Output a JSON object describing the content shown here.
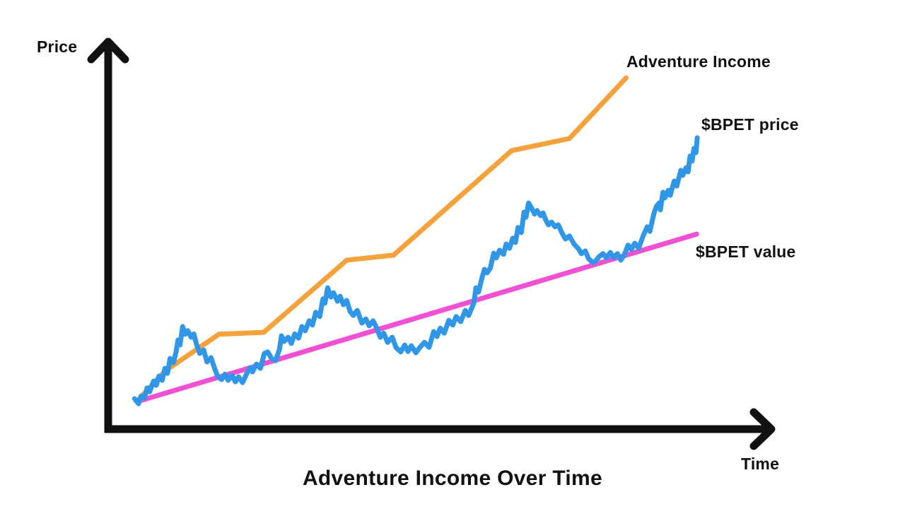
{
  "colors": {
    "axis": "#111111",
    "text": "#111111",
    "adventure_income": "#F5A13C",
    "bpet_price": "#2F96E8",
    "bpet_value": "#F050D2",
    "background": "#ffffff"
  },
  "chart_data": {
    "type": "line",
    "title": "Adventure Income Over Time",
    "xlabel": "Time",
    "ylabel": "Price",
    "xlim": [
      0,
      100
    ],
    "ylim": [
      0,
      100
    ],
    "grid": false,
    "legend_position": "inline-right",
    "axes_numeric_ticks": "none (conceptual sketch; coordinates normalized 0-100)",
    "series": [
      {
        "name": "Adventure Income",
        "color": "#F5A13C",
        "points": [
          [
            4.5,
            7.7
          ],
          [
            8.6,
            15.3
          ],
          [
            16.8,
            24.9
          ],
          [
            23.6,
            25.4
          ],
          [
            36.2,
            44.2
          ],
          [
            43.3,
            45.5
          ],
          [
            61.2,
            72.7
          ],
          [
            70.0,
            75.9
          ],
          [
            78.6,
            91.7
          ]
        ]
      },
      {
        "name": "$BPET value",
        "color": "#F050D2",
        "points": [
          [
            4.5,
            7.4
          ],
          [
            89.3,
            51.0
          ]
        ]
      },
      {
        "name": "$BPET price",
        "color": "#2F96E8",
        "points": [
          [
            4.0,
            8.1
          ],
          [
            4.6,
            6.8
          ],
          [
            5.0,
            8.8
          ],
          [
            5.5,
            8.3
          ],
          [
            5.9,
            10.9
          ],
          [
            6.3,
            9.9
          ],
          [
            6.9,
            12.7
          ],
          [
            7.3,
            11.6
          ],
          [
            7.7,
            14.0
          ],
          [
            8.2,
            12.9
          ],
          [
            8.6,
            16.0
          ],
          [
            9.0,
            14.7
          ],
          [
            9.4,
            18.6
          ],
          [
            9.9,
            17.5
          ],
          [
            10.3,
            20.3
          ],
          [
            10.6,
            23.4
          ],
          [
            10.9,
            22.1
          ],
          [
            11.3,
            26.9
          ],
          [
            11.7,
            24.9
          ],
          [
            12.1,
            25.8
          ],
          [
            12.6,
            24.1
          ],
          [
            13.0,
            25.0
          ],
          [
            13.4,
            22.3
          ],
          [
            13.9,
            19.9
          ],
          [
            14.5,
            20.8
          ],
          [
            15.0,
            17.7
          ],
          [
            15.6,
            18.8
          ],
          [
            16.1,
            16.2
          ],
          [
            16.6,
            14.0
          ],
          [
            17.2,
            13.1
          ],
          [
            17.7,
            14.5
          ],
          [
            18.2,
            12.9
          ],
          [
            18.8,
            14.2
          ],
          [
            19.3,
            12.5
          ],
          [
            19.8,
            13.8
          ],
          [
            20.4,
            12.3
          ],
          [
            20.9,
            14.2
          ],
          [
            21.5,
            16.2
          ],
          [
            21.9,
            15.1
          ],
          [
            22.5,
            17.1
          ],
          [
            23.1,
            16.0
          ],
          [
            23.7,
            19.9
          ],
          [
            24.2,
            20.3
          ],
          [
            24.8,
            18.6
          ],
          [
            25.4,
            18.0
          ],
          [
            26.0,
            21.0
          ],
          [
            26.3,
            24.5
          ],
          [
            26.7,
            23.0
          ],
          [
            27.3,
            24.1
          ],
          [
            27.8,
            22.5
          ],
          [
            28.3,
            25.0
          ],
          [
            28.9,
            23.9
          ],
          [
            29.4,
            26.9
          ],
          [
            29.9,
            25.8
          ],
          [
            30.5,
            28.4
          ],
          [
            31.0,
            27.3
          ],
          [
            31.5,
            30.6
          ],
          [
            32.1,
            29.5
          ],
          [
            32.6,
            34.1
          ],
          [
            32.9,
            33.0
          ],
          [
            33.3,
            37.0
          ],
          [
            33.8,
            34.6
          ],
          [
            34.2,
            35.7
          ],
          [
            34.8,
            33.5
          ],
          [
            35.2,
            34.8
          ],
          [
            35.7,
            32.6
          ],
          [
            36.2,
            33.7
          ],
          [
            36.7,
            30.9
          ],
          [
            37.2,
            29.8
          ],
          [
            37.8,
            31.1
          ],
          [
            38.5,
            27.8
          ],
          [
            39.1,
            28.9
          ],
          [
            39.6,
            27.1
          ],
          [
            40.2,
            28.4
          ],
          [
            40.7,
            26.7
          ],
          [
            41.3,
            24.1
          ],
          [
            41.8,
            25.2
          ],
          [
            42.4,
            22.8
          ],
          [
            43.1,
            24.1
          ],
          [
            43.7,
            21.4
          ],
          [
            44.4,
            20.3
          ],
          [
            45.0,
            22.1
          ],
          [
            45.5,
            20.4
          ],
          [
            46.0,
            21.9
          ],
          [
            46.7,
            20.1
          ],
          [
            47.4,
            21.7
          ],
          [
            48.0,
            22.8
          ],
          [
            48.7,
            21.5
          ],
          [
            49.4,
            25.6
          ],
          [
            49.9,
            24.3
          ],
          [
            50.4,
            26.5
          ],
          [
            51.0,
            25.2
          ],
          [
            51.7,
            28.5
          ],
          [
            52.3,
            27.3
          ],
          [
            52.8,
            29.5
          ],
          [
            53.5,
            28.2
          ],
          [
            54.2,
            31.1
          ],
          [
            54.7,
            29.8
          ],
          [
            55.5,
            33.1
          ],
          [
            55.8,
            37.0
          ],
          [
            56.2,
            35.9
          ],
          [
            56.7,
            39.4
          ],
          [
            57.1,
            41.8
          ],
          [
            57.5,
            40.9
          ],
          [
            58.0,
            42.2
          ],
          [
            58.5,
            46.0
          ],
          [
            58.9,
            44.8
          ],
          [
            59.4,
            46.8
          ],
          [
            60.0,
            45.7
          ],
          [
            60.4,
            48.4
          ],
          [
            60.9,
            47.3
          ],
          [
            61.4,
            49.9
          ],
          [
            61.8,
            48.8
          ],
          [
            62.2,
            52.7
          ],
          [
            62.7,
            51.4
          ],
          [
            63.1,
            56.7
          ],
          [
            63.4,
            55.4
          ],
          [
            63.8,
            59.1
          ],
          [
            64.3,
            57.6
          ],
          [
            64.7,
            56.2
          ],
          [
            65.1,
            57.1
          ],
          [
            65.6,
            55.8
          ],
          [
            66.0,
            56.5
          ],
          [
            66.4,
            54.7
          ],
          [
            66.8,
            53.4
          ],
          [
            67.3,
            54.1
          ],
          [
            67.8,
            52.9
          ],
          [
            68.3,
            53.4
          ],
          [
            68.9,
            51.2
          ],
          [
            69.4,
            49.7
          ],
          [
            70.0,
            50.5
          ],
          [
            70.7,
            48.4
          ],
          [
            71.4,
            47.1
          ],
          [
            71.8,
            45.9
          ],
          [
            72.4,
            46.6
          ],
          [
            72.9,
            44.6
          ],
          [
            73.5,
            43.6
          ],
          [
            73.9,
            43.8
          ],
          [
            74.5,
            45.1
          ],
          [
            75.1,
            45.9
          ],
          [
            75.6,
            44.8
          ],
          [
            76.2,
            46.2
          ],
          [
            76.7,
            44.9
          ],
          [
            77.3,
            45.9
          ],
          [
            77.8,
            44.2
          ],
          [
            78.3,
            45.5
          ],
          [
            78.9,
            48.1
          ],
          [
            79.4,
            47.0
          ],
          [
            79.9,
            48.6
          ],
          [
            80.5,
            47.3
          ],
          [
            81.2,
            50.6
          ],
          [
            81.8,
            52.9
          ],
          [
            82.2,
            51.7
          ],
          [
            82.8,
            56.2
          ],
          [
            83.2,
            58.2
          ],
          [
            83.6,
            59.1
          ],
          [
            83.8,
            57.3
          ],
          [
            84.2,
            61.9
          ],
          [
            84.5,
            60.4
          ],
          [
            85.0,
            62.4
          ],
          [
            85.3,
            61.1
          ],
          [
            85.6,
            63.0
          ],
          [
            85.9,
            64.8
          ],
          [
            86.3,
            63.5
          ],
          [
            86.6,
            65.6
          ],
          [
            86.9,
            67.6
          ],
          [
            87.2,
            66.3
          ],
          [
            87.7,
            68.3
          ],
          [
            88.0,
            67.2
          ],
          [
            88.3,
            71.3
          ],
          [
            88.6,
            70.0
          ],
          [
            88.9,
            73.3
          ],
          [
            89.2,
            72.2
          ],
          [
            89.4,
            76.1
          ]
        ]
      }
    ]
  }
}
